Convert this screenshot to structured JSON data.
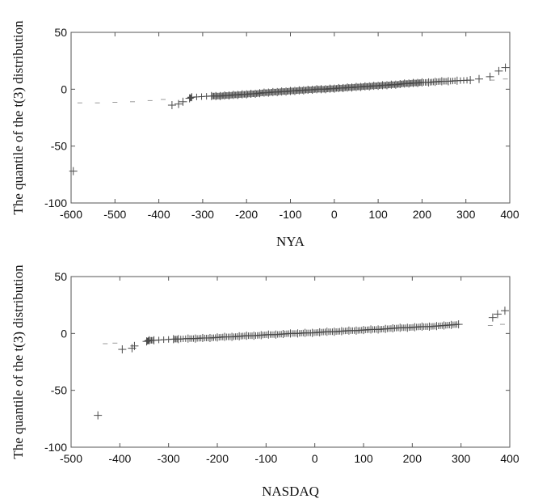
{
  "chart_data": [
    {
      "type": "scatter",
      "title": "",
      "xlabel": "NYA",
      "ylabel": "The quantile of the t(3) distribution",
      "xlim": [
        -600,
        400
      ],
      "ylim": [
        -100,
        50
      ],
      "xticks": [
        "-600",
        "-500",
        "-400",
        "-300",
        "-200",
        "-100",
        "0",
        "100",
        "200",
        "300",
        "400"
      ],
      "yticks": [
        "50",
        "0",
        "-50",
        "-100"
      ],
      "grid": false,
      "series": [
        {
          "values": [
            [
              -595,
              -72
            ],
            [
              -370,
              -14
            ],
            [
              -355,
              -13
            ],
            [
              -345,
              -11
            ],
            [
              -330,
              -8
            ],
            [
              -325,
              -7
            ],
            [
              -280,
              -6
            ],
            [
              -270,
              -6
            ],
            [
              -260,
              -6
            ],
            [
              -250,
              -5.5
            ],
            [
              -240,
              -5.5
            ],
            [
              -230,
              -5
            ],
            [
              -220,
              -5
            ],
            [
              -210,
              -4.5
            ],
            [
              -200,
              -4.5
            ],
            [
              -190,
              -4
            ],
            [
              -180,
              -4
            ],
            [
              -170,
              -3.5
            ],
            [
              -160,
              -3
            ],
            [
              -150,
              -3
            ],
            [
              -140,
              -2.5
            ],
            [
              -130,
              -2.5
            ],
            [
              -120,
              -2
            ],
            [
              -110,
              -2
            ],
            [
              -100,
              -1.5
            ],
            [
              -90,
              -1.5
            ],
            [
              -80,
              -1
            ],
            [
              -70,
              -1
            ],
            [
              -60,
              -0.5
            ],
            [
              -50,
              -0.5
            ],
            [
              -40,
              0
            ],
            [
              -30,
              0
            ],
            [
              -20,
              0
            ],
            [
              -10,
              0.5
            ],
            [
              0,
              0.5
            ],
            [
              10,
              1
            ],
            [
              20,
              1
            ],
            [
              30,
              1.5
            ],
            [
              40,
              1.5
            ],
            [
              50,
              2
            ],
            [
              60,
              2
            ],
            [
              70,
              2.5
            ],
            [
              80,
              2.5
            ],
            [
              90,
              3
            ],
            [
              100,
              3
            ],
            [
              110,
              3.5
            ],
            [
              120,
              3.5
            ],
            [
              130,
              4
            ],
            [
              140,
              4
            ],
            [
              150,
              4.5
            ],
            [
              160,
              5
            ],
            [
              170,
              5
            ],
            [
              180,
              5.5
            ],
            [
              190,
              5.5
            ],
            [
              200,
              6
            ],
            [
              215,
              6
            ],
            [
              230,
              6.5
            ],
            [
              245,
              7
            ],
            [
              260,
              7
            ],
            [
              280,
              7.5
            ],
            [
              310,
              8
            ],
            [
              330,
              9
            ],
            [
              355,
              11
            ],
            [
              375,
              16
            ],
            [
              390,
              19
            ]
          ]
        },
        {
          "values": [
            [
              -580,
              -12
            ],
            [
              -540,
              -12
            ],
            [
              -500,
              -11.5
            ],
            [
              -460,
              -11
            ],
            [
              -420,
              -10
            ],
            [
              -390,
              -9
            ],
            [
              360,
              8
            ],
            [
              390,
              9
            ]
          ]
        }
      ]
    },
    {
      "type": "scatter",
      "title": "",
      "xlabel": "NASDAQ",
      "ylabel": "The quantile of the t(3) distribution",
      "xlim": [
        -500,
        400
      ],
      "ylim": [
        -100,
        50
      ],
      "xticks": [
        "-500",
        "-400",
        "-300",
        "-200",
        "-100",
        "0",
        "100",
        "200",
        "300",
        "400"
      ],
      "yticks": [
        "50",
        "0",
        "-50",
        "-100"
      ],
      "grid": false,
      "series": [
        {
          "values": [
            [
              -445,
              -72
            ],
            [
              -395,
              -14
            ],
            [
              -375,
              -13
            ],
            [
              -370,
              -11
            ],
            [
              -345,
              -7
            ],
            [
              -340,
              -6
            ],
            [
              -330,
              -6
            ],
            [
              -290,
              -5
            ],
            [
              -280,
              -5
            ],
            [
              -260,
              -4.5
            ],
            [
              -245,
              -4.5
            ],
            [
              -230,
              -4
            ],
            [
              -215,
              -4
            ],
            [
              -200,
              -3.5
            ],
            [
              -185,
              -3
            ],
            [
              -170,
              -3
            ],
            [
              -155,
              -2.5
            ],
            [
              -140,
              -2
            ],
            [
              -125,
              -2
            ],
            [
              -110,
              -1.5
            ],
            [
              -95,
              -1
            ],
            [
              -80,
              -1
            ],
            [
              -65,
              -0.5
            ],
            [
              -50,
              0
            ],
            [
              -35,
              0
            ],
            [
              -20,
              0.5
            ],
            [
              -5,
              0.5
            ],
            [
              10,
              1
            ],
            [
              25,
              1.5
            ],
            [
              40,
              1.5
            ],
            [
              55,
              2
            ],
            [
              70,
              2.5
            ],
            [
              85,
              2.5
            ],
            [
              100,
              3
            ],
            [
              115,
              3.5
            ],
            [
              130,
              3.5
            ],
            [
              145,
              4
            ],
            [
              160,
              4.5
            ],
            [
              175,
              5
            ],
            [
              190,
              5
            ],
            [
              205,
              5.5
            ],
            [
              220,
              6
            ],
            [
              235,
              6
            ],
            [
              250,
              6.5
            ],
            [
              265,
              7
            ],
            [
              280,
              7.5
            ],
            [
              295,
              8
            ],
            [
              365,
              14
            ],
            [
              375,
              17
            ],
            [
              390,
              20
            ]
          ]
        },
        {
          "values": [
            [
              -430,
              -9
            ],
            [
              -410,
              -8.5
            ],
            [
              360,
              7
            ],
            [
              385,
              8
            ]
          ]
        }
      ]
    }
  ]
}
